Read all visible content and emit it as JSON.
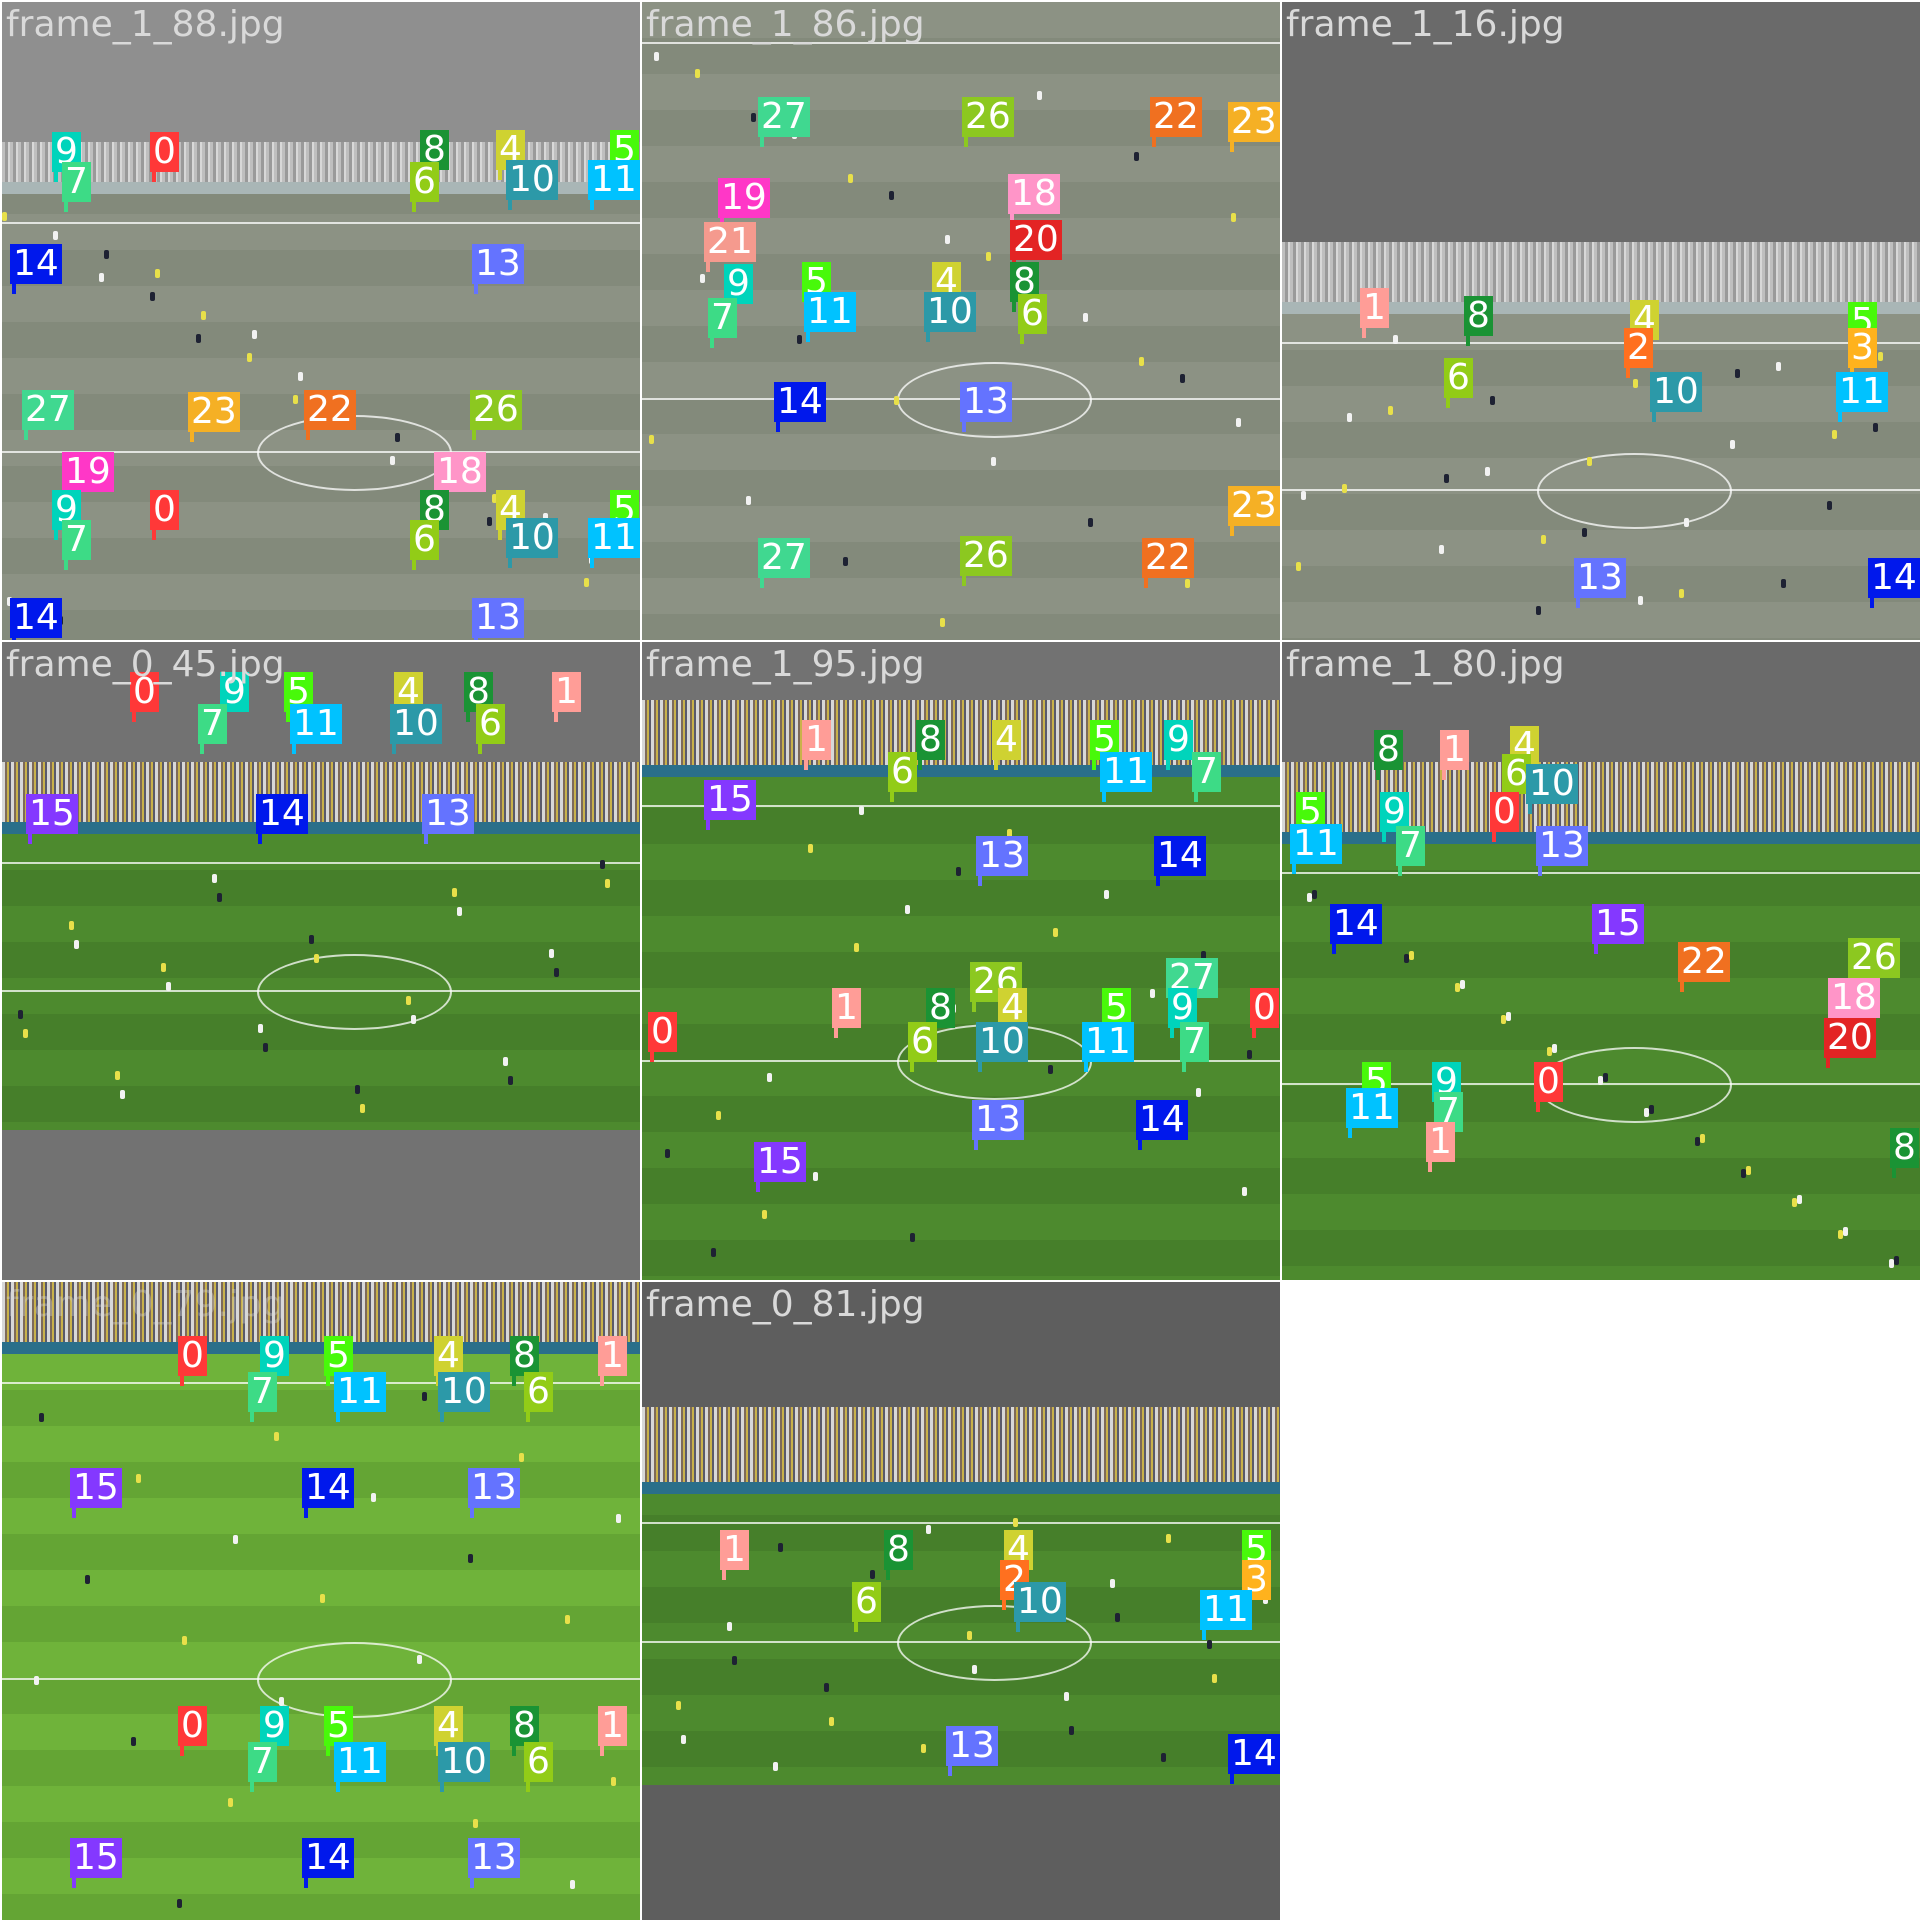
{
  "colors": {
    "0": "#ff3838",
    "1": "#ff9d97",
    "2": "#ff701f",
    "3": "#ffb21d",
    "4": "#cfd231",
    "5": "#48f90a",
    "6": "#92cc17",
    "7": "#3ddb86",
    "8": "#1a9334",
    "9": "#00d4bb",
    "10": "#2c99a8",
    "11": "#00c2ff",
    "13": "#6473ff",
    "14": "#0018ec",
    "15": "#8438ff",
    "18": "#ff95c8",
    "19": "#ff37c7",
    "20": "#e32424",
    "21": "#f59a8e",
    "22": "#f07020",
    "23": "#f5b025",
    "26": "#8cc820",
    "27": "#40d890"
  },
  "tiles": [
    {
      "filename": "frame_1_88.jpg",
      "style": "gray",
      "labels": [
        "9",
        "7",
        "0",
        "8",
        "6",
        "4",
        "10",
        "5",
        "11",
        "14",
        "13",
        "27",
        "23",
        "22",
        "26",
        "19",
        "18",
        "9",
        "7",
        "0",
        "8",
        "6",
        "4",
        "10",
        "5",
        "11",
        "14",
        "13"
      ]
    },
    {
      "filename": "frame_1_86.jpg",
      "style": "gray",
      "labels": [
        "27",
        "26",
        "22",
        "23",
        "19",
        "18",
        "21",
        "20",
        "9",
        "7",
        "5",
        "11",
        "4",
        "10",
        "8",
        "6",
        "14",
        "13",
        "27",
        "26",
        "22",
        "23"
      ]
    },
    {
      "filename": "frame_1_16.jpg",
      "style": "gray",
      "labels": [
        "1",
        "8",
        "4",
        "2",
        "5",
        "3",
        "6",
        "10",
        "11",
        "13",
        "14"
      ]
    },
    {
      "filename": "frame_0_45.jpg",
      "style": "color",
      "labels": [
        "0",
        "9",
        "5",
        "4",
        "8",
        "1",
        "7",
        "11",
        "10",
        "6",
        "15",
        "14",
        "13"
      ]
    },
    {
      "filename": "frame_1_95.jpg",
      "style": "color",
      "labels": [
        "1",
        "8",
        "4",
        "5",
        "9",
        "6",
        "11",
        "7",
        "15",
        "13",
        "14",
        "26",
        "27",
        "1",
        "8",
        "4",
        "5",
        "9",
        "0",
        "6",
        "10",
        "11",
        "7",
        "0",
        "13",
        "14",
        "15"
      ]
    },
    {
      "filename": "frame_1_80.jpg",
      "style": "color",
      "labels": [
        "1",
        "8",
        "4",
        "6",
        "10",
        "5",
        "9",
        "0",
        "11",
        "7",
        "13",
        "14",
        "15",
        "22",
        "26",
        "18",
        "20",
        "5",
        "9",
        "0",
        "11",
        "7",
        "1",
        "8"
      ]
    },
    {
      "filename": "frame_0_79.jpg",
      "style": "bright",
      "labels": [
        "0",
        "9",
        "5",
        "4",
        "8",
        "1",
        "7",
        "11",
        "10",
        "6",
        "15",
        "14",
        "13",
        "0",
        "9",
        "5",
        "4",
        "8",
        "1",
        "7",
        "11",
        "10",
        "6",
        "15",
        "14",
        "13"
      ]
    },
    {
      "filename": "frame_0_81.jpg",
      "style": "color",
      "labels": [
        "1",
        "8",
        "4",
        "2",
        "5",
        "3",
        "6",
        "10",
        "11",
        "13",
        "14"
      ]
    }
  ]
}
